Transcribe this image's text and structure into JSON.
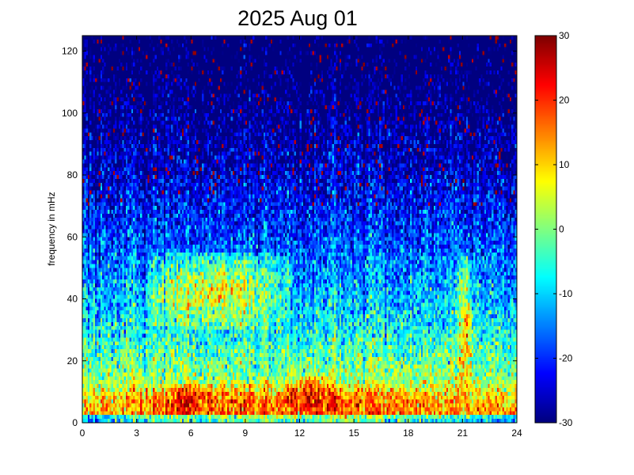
{
  "chart_data": {
    "type": "heatmap",
    "title": "2025 Aug 01",
    "xlabel": "",
    "ylabel": "frequency in mHz",
    "xlim": [
      0,
      24
    ],
    "ylim": [
      0,
      125
    ],
    "x_ticks": [
      0,
      3,
      6,
      9,
      12,
      15,
      18,
      21,
      24
    ],
    "y_ticks": [
      0,
      20,
      40,
      60,
      80,
      100,
      120
    ],
    "colorbar": {
      "range": [
        -30,
        30
      ],
      "ticks": [
        -30,
        -20,
        -10,
        0,
        10,
        20,
        30
      ],
      "colormap": "jet"
    },
    "grid": false,
    "x_resolution_hours": 0.1,
    "y_resolution_mhz": 1.25,
    "features": [
      {
        "x_range": [
          0,
          24
        ],
        "y_range": [
          0,
          12
        ],
        "level_db": 18,
        "note": "persistent low-frequency band"
      },
      {
        "x_range": [
          3.5,
          11.5
        ],
        "y_range": [
          30,
          55
        ],
        "level_db": 10,
        "note": "mid-frequency enhancement"
      },
      {
        "x_range": [
          4.5,
          7.5
        ],
        "y_range": [
          2,
          12
        ],
        "level_db": 24
      },
      {
        "x_range": [
          11.5,
          14
        ],
        "y_range": [
          2,
          15
        ],
        "level_db": 24
      },
      {
        "x_range": [
          20.7,
          21.6
        ],
        "y_range": [
          2,
          55
        ],
        "level_db": 12,
        "note": "narrow vertical streak"
      }
    ]
  }
}
